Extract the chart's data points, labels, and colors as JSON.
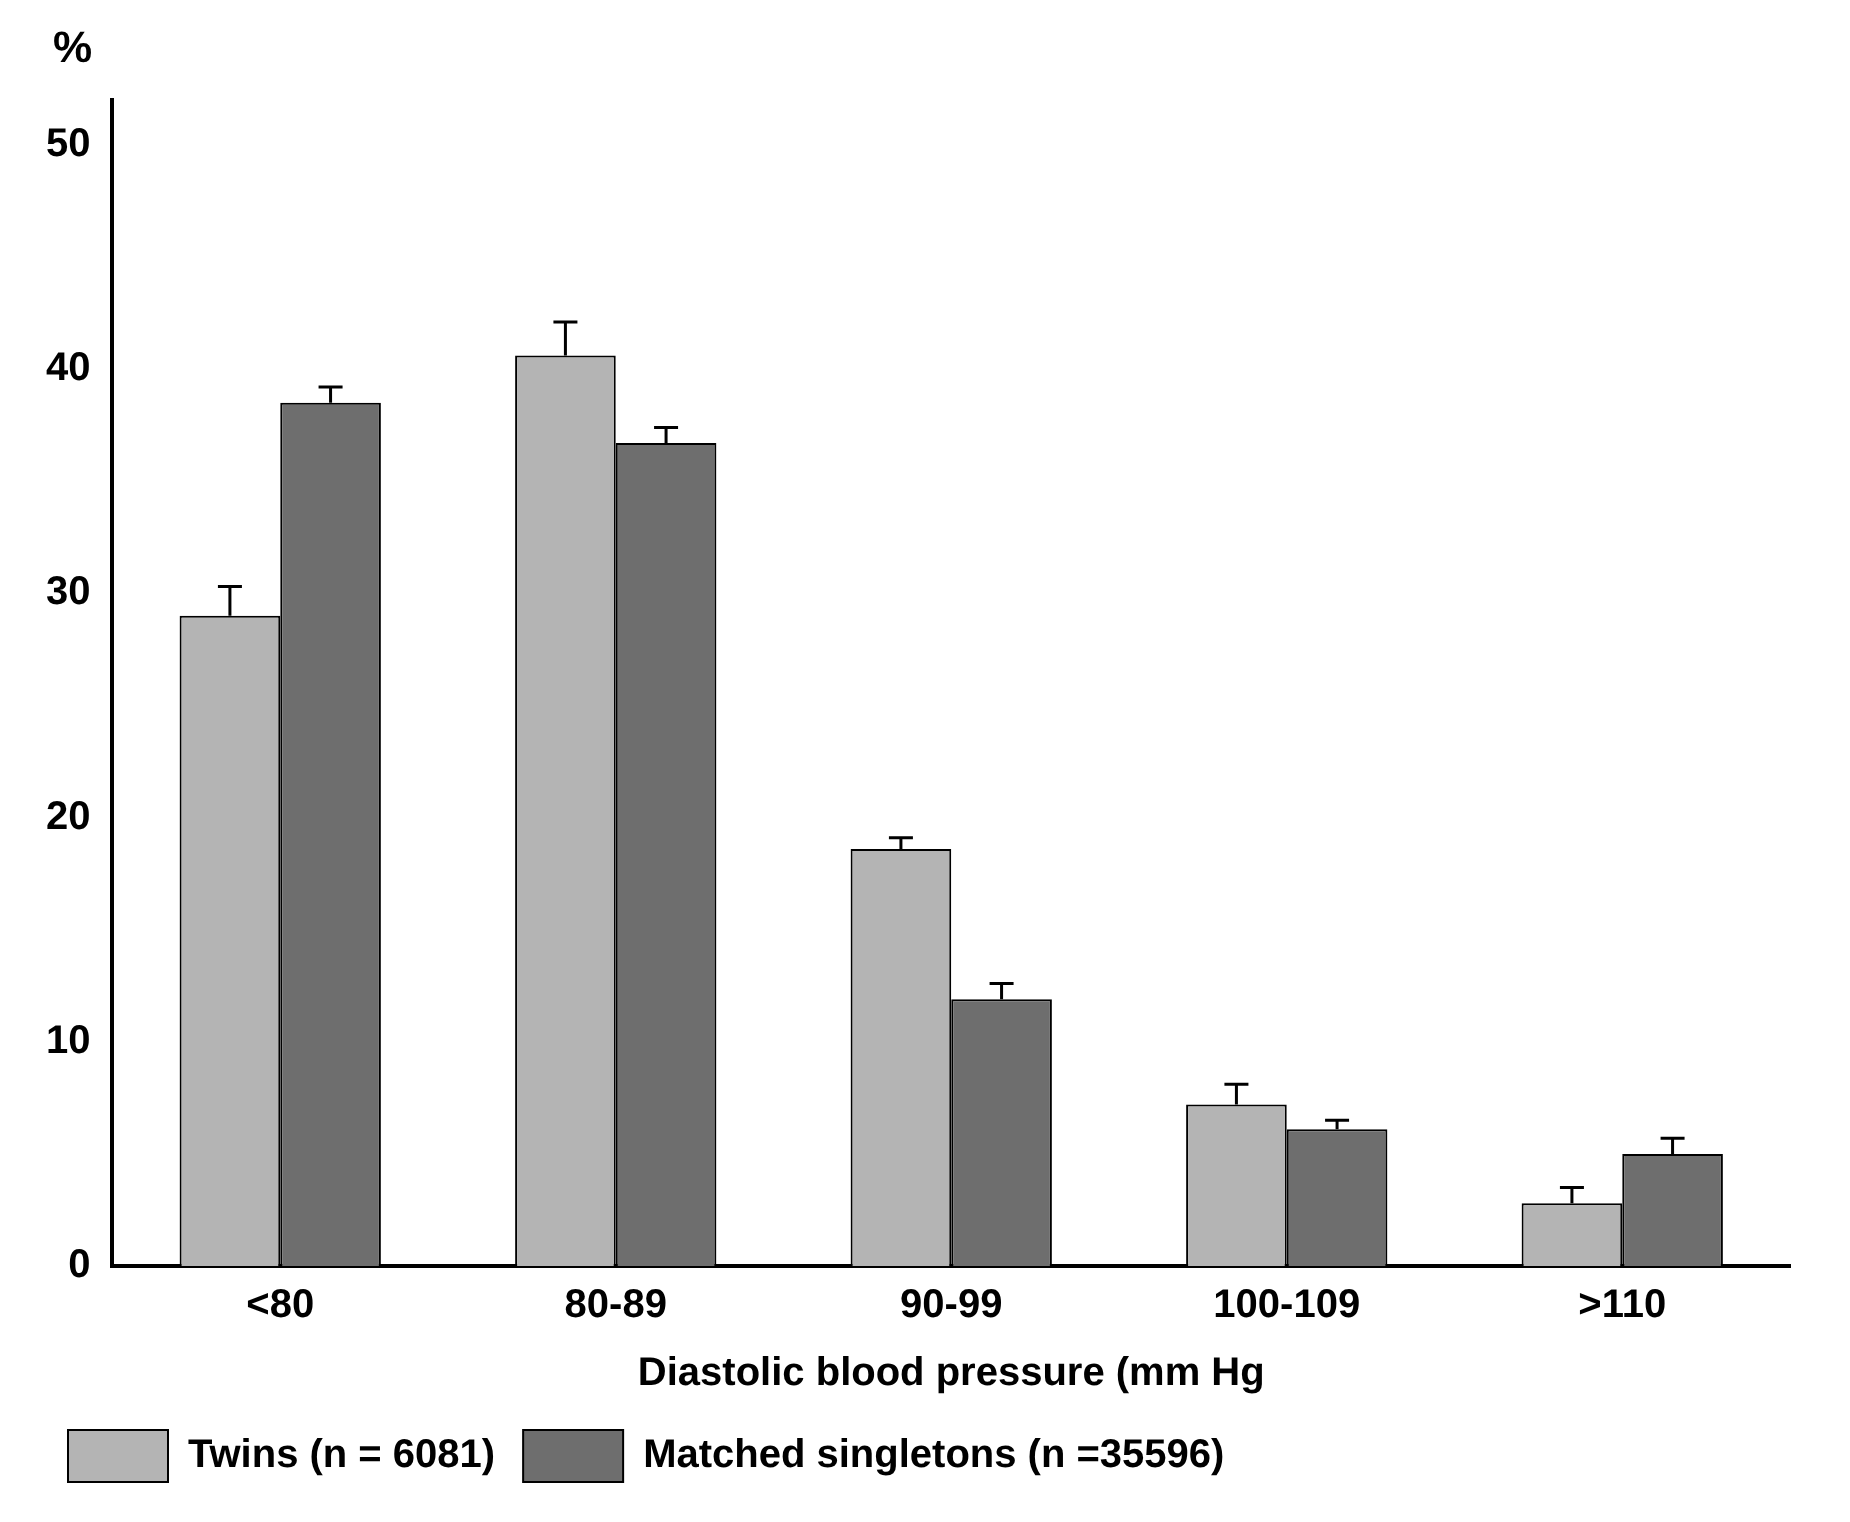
{
  "chart_data": {
    "type": "bar",
    "ylabel": "%",
    "xlabel": "Diastolic blood pressure (mm Hg",
    "categories": [
      "<80",
      "80-89",
      "90-99",
      "100-109",
      ">110"
    ],
    "series": [
      {
        "name": "Twins (n = 6081)",
        "color": "#b4b4b4",
        "values": [
          29.0,
          40.6,
          18.6,
          7.2,
          2.8
        ],
        "errors": [
          [
            29.0,
            30.3
          ],
          [
            40.6,
            42.1
          ],
          [
            18.6,
            19.1
          ],
          [
            7.2,
            8.1
          ],
          [
            2.8,
            3.5
          ]
        ]
      },
      {
        "name": "Matched singletons (n =35596)",
        "color": "#6e6e6e",
        "values": [
          38.5,
          36.7,
          11.9,
          6.1,
          5.0
        ],
        "errors": [
          [
            38.5,
            39.2
          ],
          [
            36.7,
            37.4
          ],
          [
            11.9,
            12.6
          ],
          [
            6.1,
            6.5
          ],
          [
            5.0,
            5.7
          ]
        ]
      }
    ],
    "ylim": [
      0,
      52
    ],
    "yticks": [
      0,
      10,
      20,
      30,
      40,
      50
    ],
    "grid": false,
    "legend": "bottom left"
  }
}
